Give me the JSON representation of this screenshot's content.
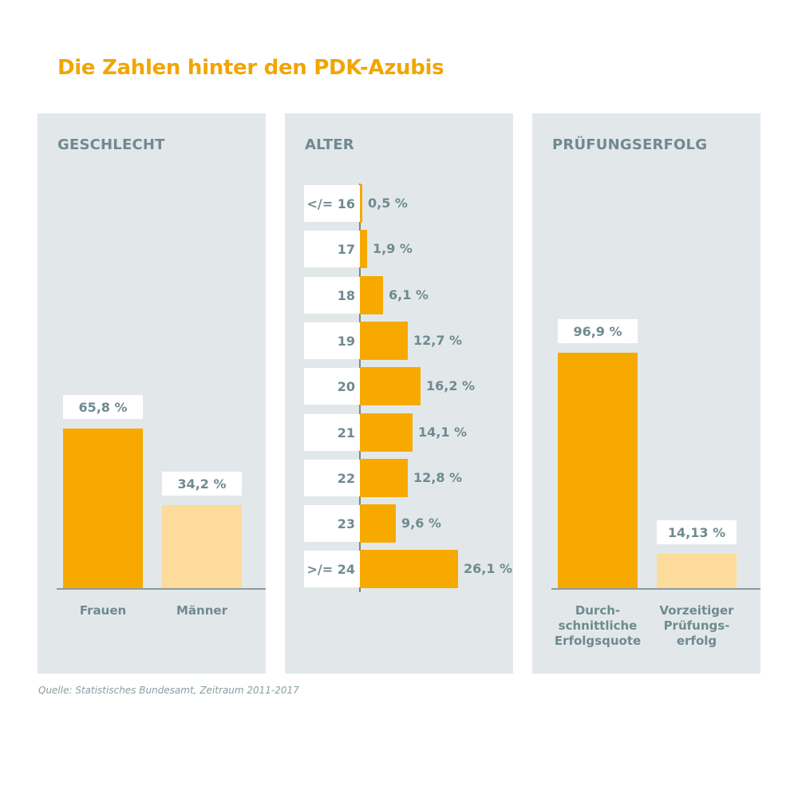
{
  "title": "Die Zahlen hinter den PDK-Azubis",
  "source": "Quelle: Statistisches Bundesamt, Zeitraum 2011-2017",
  "colors": {
    "primary": "#f7a900",
    "light": "#fddb9a",
    "panel": "#e2e8ea",
    "text": "#6f8a90",
    "title": "#f2a500"
  },
  "chart_data": [
    {
      "type": "bar",
      "title": "GESCHLECHT",
      "categories": [
        "Frauen",
        "Männer"
      ],
      "values": [
        65.8,
        34.2
      ],
      "value_labels": [
        "65,8 %",
        "34,2 %"
      ],
      "ylim": [
        0,
        100
      ]
    },
    {
      "type": "bar",
      "orientation": "horizontal",
      "title": "ALTER",
      "categories": [
        "</= 16",
        "17",
        "18",
        "19",
        "20",
        "21",
        "22",
        "23",
        ">/= 24"
      ],
      "values": [
        0.5,
        1.9,
        6.1,
        12.7,
        16.2,
        14.1,
        12.8,
        9.6,
        26.1
      ],
      "value_labels": [
        "0,5 %",
        "1,9 %",
        "6,1 %",
        "12,7 %",
        "16,2 %",
        "14,1 %",
        "12,8 %",
        "9,6 %",
        "26,1 %"
      ]
    },
    {
      "type": "bar",
      "title": "PRÜFUNGSERFOLG",
      "categories": [
        "Durch-\nschnittliche\nErfolgsquote",
        "Vorzeitiger\nPrüfungs-\nerfolg"
      ],
      "values": [
        96.9,
        14.13
      ],
      "value_labels": [
        "96,9 %",
        "14,13 %"
      ],
      "ylim": [
        0,
        100
      ]
    }
  ]
}
